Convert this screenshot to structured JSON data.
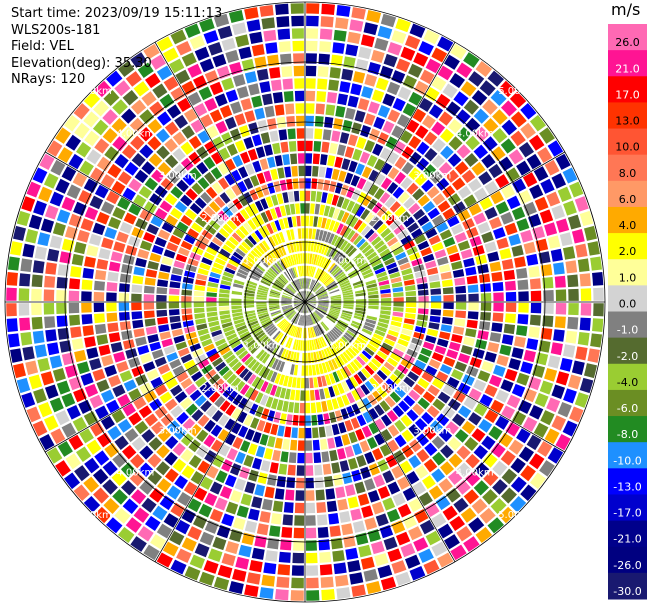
{
  "info": {
    "start_time": "Start time: 2023/09/19 15:11:13",
    "station": "WLS200s-181",
    "field": "Field: VEL",
    "elevation": "Elevation(deg): 35.30",
    "nrays": "NRays: 120"
  },
  "chart_data": {
    "type": "heatmap",
    "title": "",
    "field": "VEL",
    "projection": "polar",
    "n_rays": 120,
    "range_ring_labels": [
      "1.00km",
      "2.00km",
      "3.00km",
      "4.00km",
      "5.00km"
    ],
    "colorbar": {
      "unit": "m/s",
      "ticks": [
        "26.0",
        "21.0",
        "17.0",
        "13.0",
        "10.0",
        "8.0",
        "6.0",
        "4.0",
        "2.0",
        "1.0",
        "0.0",
        "-1.0",
        "-2.0",
        "-4.0",
        "-6.0",
        "-8.0",
        "-10.0",
        "-13.0",
        "-17.0",
        "-21.0",
        "-26.0",
        "-30.0"
      ],
      "colors": [
        "#ff69b4",
        "#ff1493",
        "#ff0000",
        "#ff3300",
        "#ff5533",
        "#ff7755",
        "#ff9966",
        "#ffaa00",
        "#ffff00",
        "#ffff99",
        "#d3d3d3",
        "#808080",
        "#556b2f",
        "#9acd32",
        "#6b8e23",
        "#228b22",
        "#1e90ff",
        "#0000ff",
        "#0000cd",
        "#00008b",
        "#000080",
        "#191970"
      ],
      "no_data": "#ffffff"
    },
    "near_field": {
      "description_colors": [
        "#808080",
        "#9acd32",
        "#ffd700",
        "#ffff00",
        "#6b8e23"
      ]
    }
  }
}
